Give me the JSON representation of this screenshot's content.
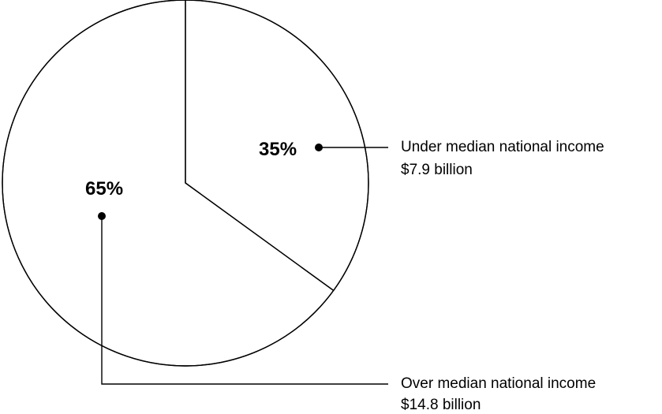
{
  "chart_data": {
    "type": "pie",
    "slices": [
      {
        "percent": 35,
        "percent_label": "35%",
        "label": "Under median national income",
        "amount": "$7.9 billion",
        "value_billion": 7.9
      },
      {
        "percent": 65,
        "percent_label": "65%",
        "label": "Over median national income",
        "amount": "$14.8 billion",
        "value_billion": 14.8
      }
    ],
    "colors": {
      "fill": "#ffffff",
      "stroke": "#000000"
    }
  }
}
